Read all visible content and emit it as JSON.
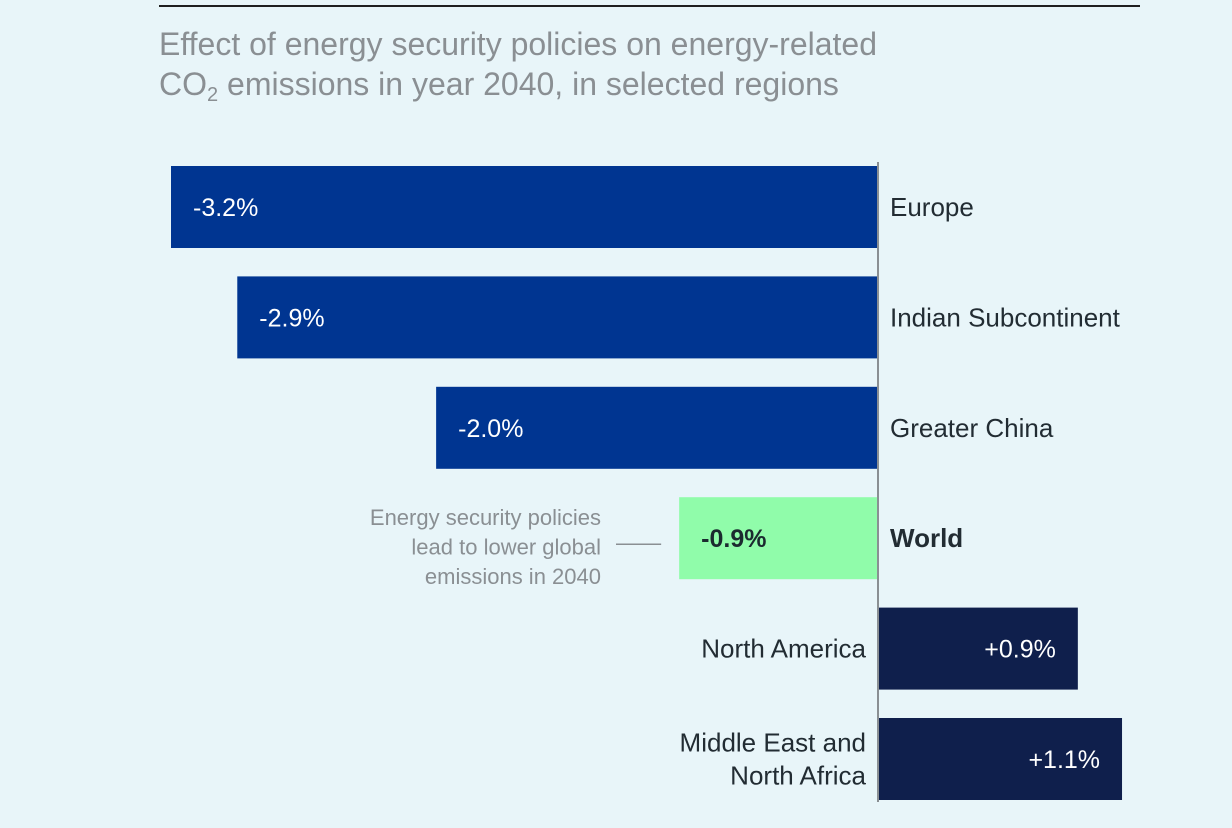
{
  "title_line1": "Effect of energy security policies on energy-related",
  "title_line2_prefix": "CO",
  "title_line2_sub": "2",
  "title_line2_suffix": " emissions in year 2040, in selected regions",
  "chart_data": {
    "type": "bar",
    "orientation": "horizontal",
    "xlim": [
      -3.2,
      1.1
    ],
    "categories": [
      [
        "Europe"
      ],
      [
        "Indian Subcontinent"
      ],
      [
        "Greater China"
      ],
      [
        "World"
      ],
      [
        "North America"
      ],
      [
        "Middle East and",
        "North Africa"
      ]
    ],
    "values": [
      -3.2,
      -2.9,
      -2.0,
      -0.9,
      0.9,
      1.1
    ],
    "value_labels": [
      "-3.2%",
      "-2.9%",
      "-2.0%",
      "-0.9%",
      "+0.9%",
      "+1.1%"
    ],
    "colors": [
      "#003591",
      "#003591",
      "#003591",
      "#90fcaa",
      "#0f1f4c",
      "#0f1f4c"
    ],
    "label_colors": [
      "#ffffff",
      "#ffffff",
      "#ffffff",
      "#1b2a2f",
      "#ffffff",
      "#ffffff"
    ],
    "highlight": "World",
    "annotation": {
      "target": "World",
      "lines": [
        "Energy security policies",
        "lead to lower global",
        "emissions in 2040"
      ]
    },
    "axis_color": "#8a8f93",
    "grid": false,
    "legend": "none"
  }
}
